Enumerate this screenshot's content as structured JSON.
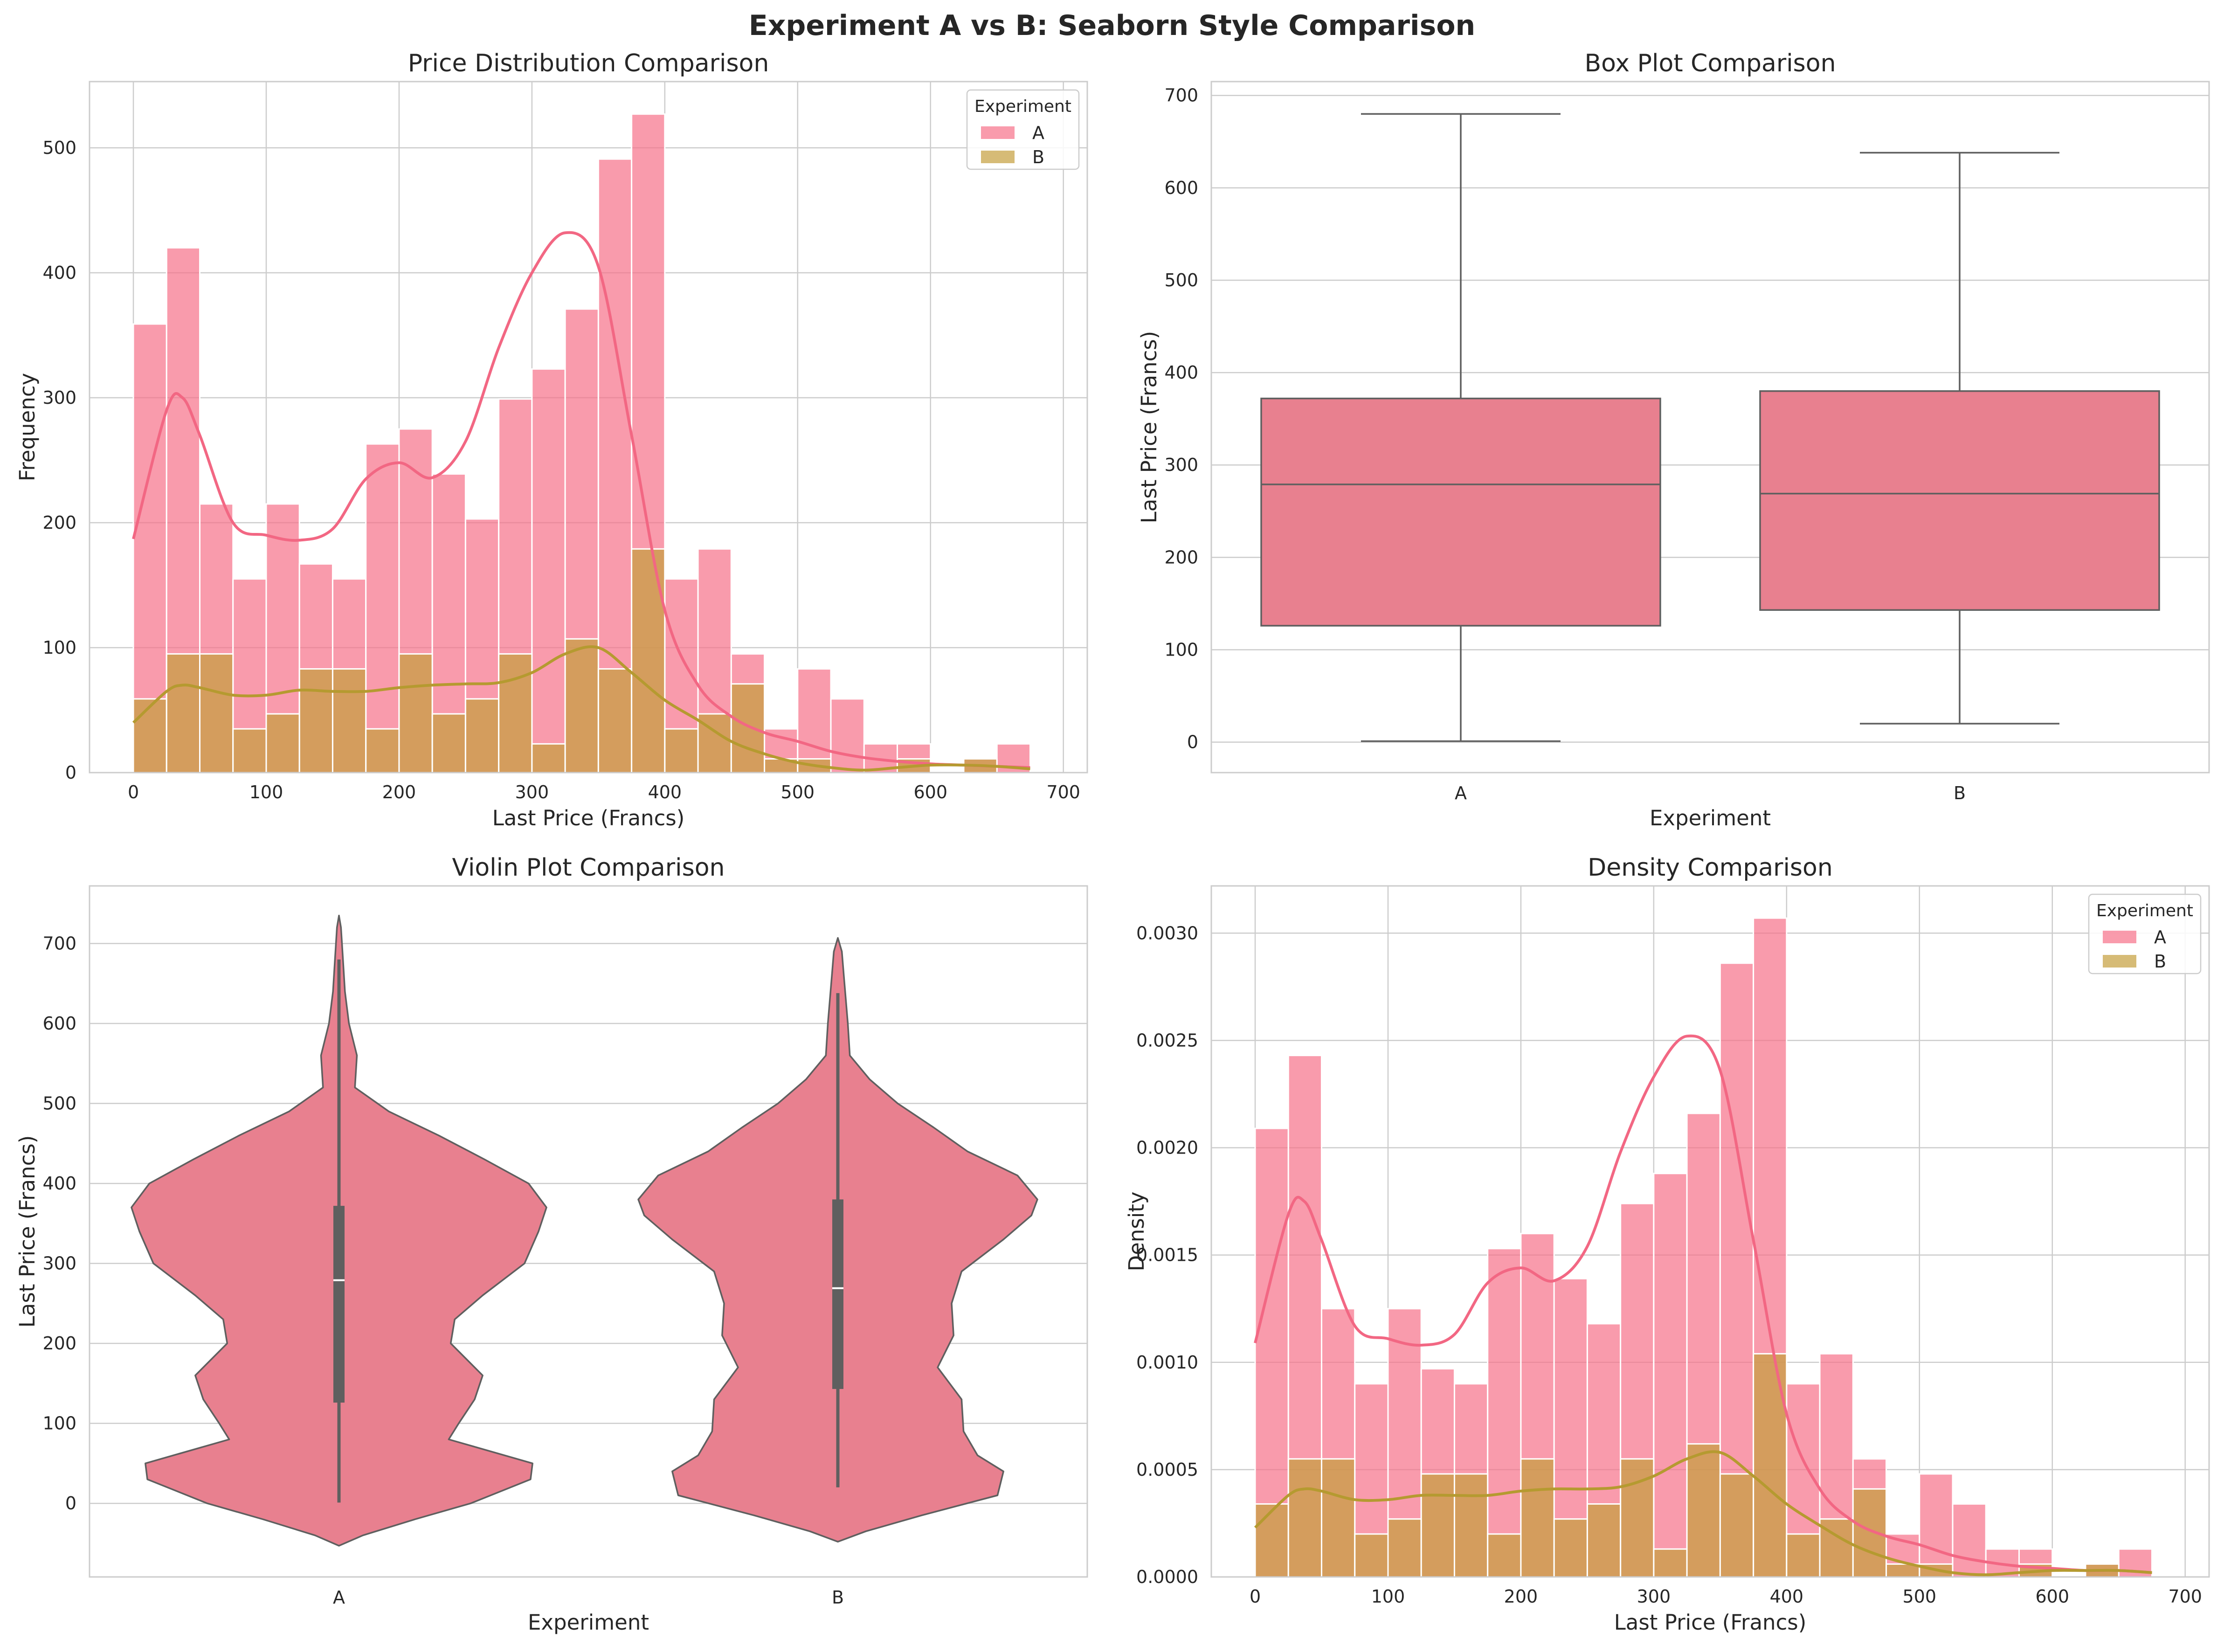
{
  "colors": {
    "A": "#f77189",
    "B": "#c59e3c",
    "box": "#e8808f",
    "line": "#5f5f5f"
  },
  "chart_data": {
    "suptitle": "Experiment A vs B: Seaborn Style Comparison",
    "bins": [
      0,
      25,
      50,
      75,
      100,
      125,
      150,
      175,
      200,
      225,
      250,
      275,
      300,
      325,
      350,
      375,
      400,
      425,
      450,
      475,
      500,
      525,
      550,
      575,
      600,
      625,
      650,
      675,
      700
    ],
    "kde_x": [
      0,
      25,
      37,
      50,
      75,
      100,
      125,
      150,
      175,
      200,
      225,
      250,
      275,
      300,
      325,
      350,
      375,
      400,
      425,
      450,
      475,
      500,
      525,
      550,
      575,
      600,
      625,
      650,
      675
    ],
    "panels": [
      {
        "type": "histogram",
        "title": "Price Distribution Comparison",
        "xlabel": "Last Price (Francs)",
        "ylabel": "Frequency",
        "xlim": [
          -33,
          718
        ],
        "ylim": [
          0,
          553
        ],
        "xticks": [
          0,
          100,
          200,
          300,
          400,
          500,
          600,
          700
        ],
        "yticks": [
          0,
          100,
          200,
          300,
          400,
          500
        ],
        "ytick_labels": [
          "0",
          "100",
          "200",
          "300",
          "400",
          "500"
        ],
        "legend": {
          "title": "Experiment",
          "position": "top-right",
          "entries": [
            "A",
            "B"
          ]
        },
        "series": [
          {
            "name": "A",
            "values": [
              359,
              420,
              215,
              155,
              215,
              167,
              155,
              263,
              275,
              239,
              203,
              299,
              323,
              371,
              491,
              527,
              155,
              179,
              95,
              35,
              83,
              59,
              23,
              23,
              0,
              11,
              23,
              0
            ]
          },
          {
            "name": "B",
            "values": [
              59,
              95,
              95,
              35,
              47,
              83,
              83,
              35,
              95,
              47,
              59,
              95,
              23,
              107,
              83,
              179,
              35,
              47,
              71,
              11,
              11,
              0,
              0,
              11,
              0,
              11,
              0,
              0
            ]
          }
        ],
        "kde": [
          {
            "name": "A",
            "values": [
              187,
              290,
              300,
              270,
              200,
              190,
              186,
              195,
              235,
              248,
              236,
              265,
              340,
              400,
              432,
              405,
              270,
              130,
              70,
              45,
              32,
              25,
              17,
              12,
              9,
              7,
              6,
              5,
              4
            ]
          },
          {
            "name": "B",
            "values": [
              40,
              65,
              70,
              68,
              62,
              62,
              66,
              65,
              65,
              68,
              70,
              71,
              72,
              80,
              95,
              100,
              80,
              58,
              42,
              25,
              15,
              8,
              4,
              2,
              4,
              6,
              6,
              5,
              3
            ]
          }
        ]
      },
      {
        "type": "box",
        "title": "Box Plot Comparison",
        "xlabel": "Experiment",
        "ylabel": "Last Price (Francs)",
        "ylim": [
          -33,
          715
        ],
        "yticks": [
          0,
          100,
          200,
          300,
          400,
          500,
          600,
          700
        ],
        "categories": [
          "A",
          "B"
        ],
        "stats": [
          {
            "name": "A",
            "min": 1,
            "q1": 126,
            "median": 279,
            "q3": 372,
            "max": 680
          },
          {
            "name": "B",
            "min": 20,
            "q1": 143,
            "median": 269,
            "q3": 380,
            "max": 638
          }
        ]
      },
      {
        "type": "violin",
        "title": "Violin Plot Comparison",
        "xlabel": "Experiment",
        "ylabel": "Last Price (Francs)",
        "ylim": [
          -92,
          772
        ],
        "yticks": [
          0,
          100,
          200,
          300,
          400,
          500,
          600,
          700
        ],
        "categories": [
          "A",
          "B"
        ],
        "violins": [
          {
            "name": "A",
            "y": [
              -53,
              -40,
              -20,
              0,
              30,
              50,
              80,
              100,
              130,
              160,
              200,
              230,
              260,
              300,
              340,
              370,
              400,
              430,
              460,
              490,
              520,
              560,
              600,
              640,
              680,
              720,
              735
            ],
            "w": [
              0,
              0.12,
              0.38,
              0.66,
              0.96,
              0.97,
              0.55,
              0.6,
              0.68,
              0.72,
              0.56,
              0.58,
              0.72,
              0.93,
              1.0,
              1.04,
              0.95,
              0.73,
              0.5,
              0.25,
              0.08,
              0.09,
              0.05,
              0.03,
              0.02,
              0.01,
              0
            ]
          },
          {
            "name": "B",
            "y": [
              -48,
              -35,
              -15,
              10,
              40,
              60,
              90,
              130,
              170,
              210,
              250,
              290,
              330,
              360,
              380,
              410,
              440,
              470,
              500,
              530,
              560,
              600,
              630,
              660,
              690,
              707
            ],
            "w": [
              0,
              0.14,
              0.42,
              0.8,
              0.83,
              0.7,
              0.63,
              0.62,
              0.5,
              0.58,
              0.57,
              0.62,
              0.83,
              0.97,
              1.0,
              0.9,
              0.65,
              0.48,
              0.3,
              0.16,
              0.06,
              0.05,
              0.04,
              0.03,
              0.02,
              0
            ]
          }
        ],
        "stats": [
          {
            "name": "A",
            "min": 1,
            "q1": 126,
            "median": 279,
            "q3": 372,
            "max": 680
          },
          {
            "name": "B",
            "min": 20,
            "q1": 143,
            "median": 269,
            "q3": 380,
            "max": 638
          }
        ]
      },
      {
        "type": "histogram",
        "title": "Density Comparison",
        "xlabel": "Last Price (Francs)",
        "ylabel": "Density",
        "xlim": [
          -33,
          718
        ],
        "ylim": [
          0,
          0.00322
        ],
        "xticks": [
          0,
          100,
          200,
          300,
          400,
          500,
          600,
          700
        ],
        "yticks": [
          0,
          0.0005,
          0.001,
          0.0015,
          0.002,
          0.0025,
          0.003
        ],
        "ytick_labels": [
          "0.0000",
          "0.0005",
          "0.0010",
          "0.0015",
          "0.0020",
          "0.0025",
          "0.0030"
        ],
        "legend": {
          "title": "Experiment",
          "position": "top-right",
          "entries": [
            "A",
            "B"
          ]
        },
        "series": [
          {
            "name": "A",
            "values": [
              0.00209,
              0.00243,
              0.00125,
              0.0009,
              0.00125,
              0.00097,
              0.0009,
              0.00153,
              0.0016,
              0.00139,
              0.00118,
              0.00174,
              0.00188,
              0.00216,
              0.00286,
              0.00307,
              0.0009,
              0.00104,
              0.00055,
              0.0002,
              0.00048,
              0.00034,
              0.00013,
              0.00013,
              0,
              6e-05,
              0.00013,
              0
            ]
          },
          {
            "name": "B",
            "values": [
              0.00034,
              0.00055,
              0.00055,
              0.0002,
              0.00027,
              0.00048,
              0.00048,
              0.0002,
              0.00055,
              0.00027,
              0.00034,
              0.00055,
              0.00013,
              0.00062,
              0.00048,
              0.00104,
              0.0002,
              0.00027,
              0.00041,
              6e-05,
              6e-05,
              0,
              0,
              6e-05,
              0,
              6e-05,
              0,
              0
            ]
          }
        ],
        "kde": [
          {
            "name": "A",
            "values": [
              0.00109,
              0.00169,
              0.00175,
              0.00157,
              0.00117,
              0.00111,
              0.00108,
              0.00113,
              0.00137,
              0.00144,
              0.00138,
              0.00154,
              0.00198,
              0.00233,
              0.00252,
              0.00236,
              0.00157,
              0.00076,
              0.00041,
              0.00026,
              0.00019,
              0.00015,
              0.0001,
              7e-05,
              5e-05,
              4e-05,
              3e-05,
              3e-05,
              2e-05
            ]
          },
          {
            "name": "B",
            "values": [
              0.00023,
              0.00038,
              0.00041,
              0.0004,
              0.00036,
              0.00036,
              0.00038,
              0.00038,
              0.00038,
              0.0004,
              0.00041,
              0.00041,
              0.00042,
              0.00047,
              0.00055,
              0.00058,
              0.00047,
              0.00034,
              0.00024,
              0.00015,
              9e-05,
              5e-05,
              2e-05,
              1e-05,
              2e-05,
              3e-05,
              3e-05,
              3e-05,
              2e-05
            ]
          }
        ]
      }
    ]
  }
}
